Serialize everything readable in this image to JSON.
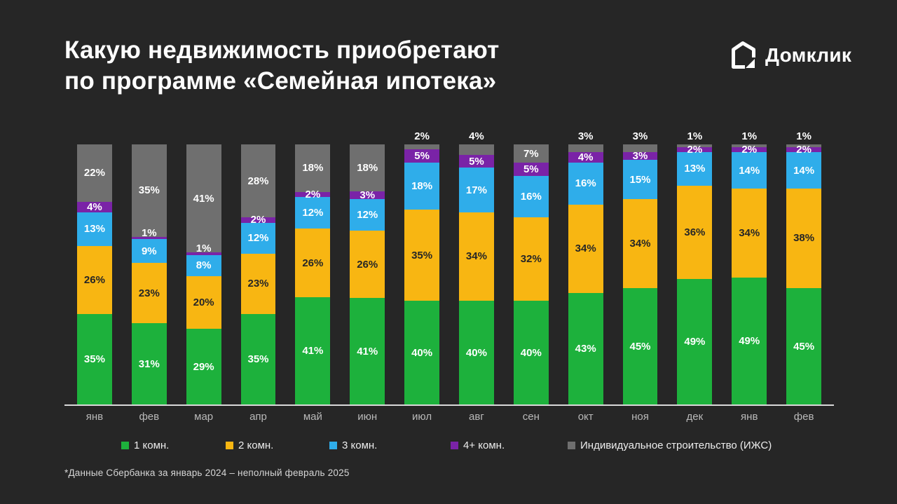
{
  "title": {
    "line1": "Какую недвижимость приобретают",
    "line2": "по программе «Семейная ипотека»"
  },
  "logo": {
    "text": "Домклик",
    "icon": "house-icon",
    "color": "#ffffff"
  },
  "footnote": "*Данные Сбербанка за январь 2024 – неполный февраль 2025",
  "colors": {
    "background": "#262626",
    "green": "#1db13c",
    "yellow": "#f8b612",
    "blue": "#2fadea",
    "purple": "#7a23a7",
    "gray": "#6f6f6f",
    "baseline": "#d9d9d9",
    "axis_text": "#b9b9b9"
  },
  "chart_data": {
    "type": "bar",
    "stacked": true,
    "unit": "%",
    "grid": false,
    "legend_position": "bottom",
    "categories": [
      "янв",
      "фев",
      "мар",
      "апр",
      "май",
      "июн",
      "июл",
      "авг",
      "сен",
      "окт",
      "ноя",
      "дек",
      "янв",
      "фев"
    ],
    "series": [
      {
        "key": "1-room",
        "name": "1 комн.",
        "color": "#1db13c",
        "label_color": "#ffffff",
        "values": [
          35,
          31,
          29,
          35,
          41,
          41,
          40,
          40,
          40,
          43,
          45,
          49,
          49,
          45
        ]
      },
      {
        "key": "2-room",
        "name": "2 комн.",
        "color": "#f8b612",
        "label_color": "#262626",
        "values": [
          26,
          23,
          20,
          23,
          26,
          26,
          35,
          34,
          32,
          34,
          34,
          36,
          34,
          38
        ]
      },
      {
        "key": "3-room",
        "name": "3 комн.",
        "color": "#2fadea",
        "label_color": "#ffffff",
        "values": [
          13,
          9,
          8,
          12,
          12,
          12,
          18,
          17,
          16,
          16,
          15,
          13,
          14,
          14
        ]
      },
      {
        "key": "4plus-room",
        "name": "4+ комн.",
        "color": "#7a23a7",
        "label_color": "#ffffff",
        "values": [
          4,
          1,
          1,
          2,
          2,
          3,
          5,
          5,
          5,
          4,
          3,
          2,
          2,
          2
        ]
      },
      {
        "key": "izhs",
        "name": "Индивидуальное строительство (ИЖС)",
        "color": "#6f6f6f",
        "label_color": "#ffffff",
        "values": [
          22,
          35,
          41,
          28,
          18,
          18,
          2,
          4,
          7,
          3,
          3,
          1,
          1,
          1
        ],
        "label_outside_if_below": 5
      }
    ]
  }
}
